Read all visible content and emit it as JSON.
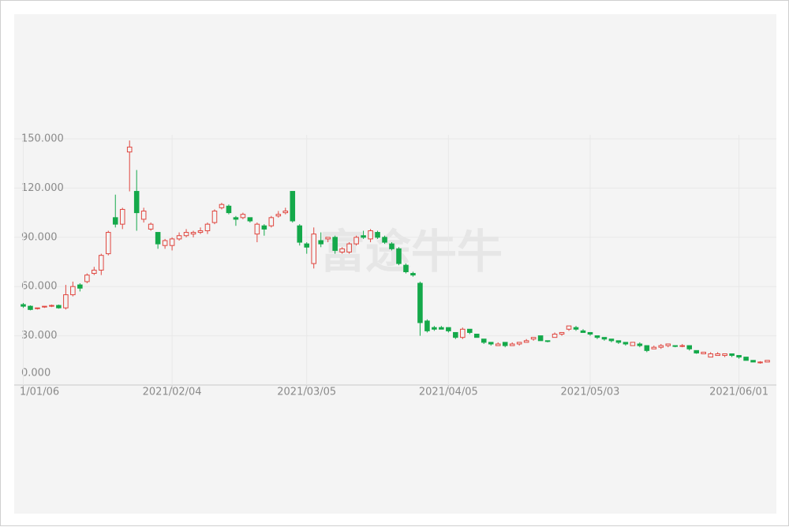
{
  "chart_data": {
    "type": "candlestick",
    "watermark": "富途牛牛",
    "up_color": "#e0463f",
    "down_color": "#14a94a",
    "grid": true,
    "ylim": [
      0,
      150
    ],
    "yticks": [
      {
        "value": 0,
        "label": "0.000"
      },
      {
        "value": 30,
        "label": "30.000"
      },
      {
        "value": 60,
        "label": "60.000"
      },
      {
        "value": 90,
        "label": "90.000"
      },
      {
        "value": 120,
        "label": "120.000"
      },
      {
        "value": 150,
        "label": "150.000"
      }
    ],
    "categories": [
      "1/01/06",
      null,
      null,
      null,
      null,
      null,
      null,
      null,
      null,
      null,
      null,
      null,
      null,
      null,
      null,
      null,
      null,
      null,
      null,
      null,
      null,
      "2021/02/04",
      null,
      null,
      null,
      null,
      null,
      null,
      null,
      null,
      null,
      null,
      null,
      null,
      null,
      null,
      null,
      null,
      null,
      null,
      "2021/03/05",
      null,
      null,
      null,
      null,
      null,
      null,
      null,
      null,
      null,
      null,
      null,
      null,
      null,
      null,
      null,
      null,
      null,
      null,
      null,
      "2021/04/05",
      null,
      null,
      null,
      null,
      null,
      null,
      null,
      null,
      null,
      null,
      null,
      null,
      null,
      null,
      null,
      null,
      null,
      null,
      null,
      "2021/05/03",
      null,
      null,
      null,
      null,
      null,
      null,
      null,
      null,
      null,
      null,
      null,
      null,
      null,
      null,
      null,
      null,
      null,
      null,
      null,
      null,
      "2021/06/01",
      null,
      null,
      null,
      null
    ],
    "open": [
      49,
      48,
      46.5,
      47.5,
      48,
      48.5,
      47,
      55,
      61,
      63,
      68,
      70,
      80,
      102,
      98,
      142,
      118,
      101,
      95,
      93,
      85,
      85,
      89,
      91,
      92,
      93,
      94,
      99,
      108,
      109,
      102,
      102,
      102,
      92,
      97,
      97,
      103,
      105,
      118,
      97,
      86,
      74,
      88,
      89,
      90,
      81,
      81,
      86,
      91,
      89,
      93,
      90,
      86,
      83,
      73,
      68,
      62,
      39,
      35,
      35,
      35,
      32,
      29,
      34,
      31,
      28,
      26,
      24,
      26,
      24,
      25,
      26,
      28,
      30,
      27,
      29,
      31,
      34,
      35,
      33,
      32,
      30,
      29,
      28,
      27,
      26,
      24,
      25,
      24,
      22,
      23,
      24,
      24,
      23.5,
      24,
      21,
      19,
      17,
      18,
      18,
      19,
      18,
      17,
      15,
      13.5,
      14
    ],
    "high": [
      50,
      48.5,
      47,
      48,
      49,
      49,
      61,
      63,
      62,
      68,
      72,
      80,
      94,
      116,
      108,
      149,
      131,
      108,
      99,
      93,
      89,
      90,
      93,
      95,
      94,
      96,
      99,
      107,
      111,
      110,
      103,
      105,
      101,
      99,
      98,
      103,
      106,
      108,
      118,
      98,
      87,
      96,
      93,
      90,
      91,
      84,
      87,
      91,
      94,
      95,
      94,
      91,
      87,
      84,
      74,
      69,
      63,
      40,
      36,
      36,
      35,
      32,
      35,
      34,
      31,
      28,
      26,
      26,
      26,
      26,
      26,
      28,
      29,
      30,
      27,
      32,
      32,
      36,
      36,
      34,
      32,
      30,
      29,
      28,
      27,
      26,
      26,
      26,
      24,
      24,
      25,
      25,
      24,
      25,
      24,
      21,
      20,
      20,
      20,
      19,
      19,
      18,
      17,
      15,
      14.5,
      15
    ],
    "low": [
      47,
      45.5,
      46,
      47,
      47.5,
      46.5,
      46,
      54,
      57,
      62,
      67,
      67,
      79,
      96,
      95,
      118,
      94,
      99,
      94,
      83,
      83,
      82,
      88,
      90,
      90,
      92,
      92,
      98,
      107,
      104,
      97,
      101,
      99,
      87,
      91,
      96,
      102,
      104,
      99,
      85,
      80,
      71,
      84,
      87,
      80,
      80,
      80,
      85,
      89,
      87,
      89,
      86,
      82,
      73,
      68,
      66,
      30,
      32,
      33,
      34,
      32,
      28,
      28,
      31,
      29,
      25,
      24,
      24,
      23,
      24,
      24,
      26,
      27,
      27,
      26,
      29,
      30,
      33,
      33,
      32,
      30,
      28,
      27,
      26,
      25,
      24,
      24,
      23,
      20,
      22,
      22,
      23,
      23,
      23,
      21,
      19,
      19,
      17,
      18,
      17,
      17,
      16,
      15,
      14,
      13,
      14
    ],
    "close": [
      48,
      46,
      47,
      48,
      48.5,
      47,
      55,
      60,
      59,
      67,
      70,
      79,
      93,
      98,
      107,
      145,
      105,
      106,
      98,
      86,
      88,
      89,
      91,
      93,
      93,
      94,
      98,
      106,
      110,
      105,
      101,
      104,
      100,
      98,
      95,
      102,
      104,
      106,
      100,
      87,
      84,
      92,
      86,
      90,
      82,
      83,
      86,
      90,
      90,
      94,
      90,
      87,
      83,
      74,
      69,
      67,
      38,
      33,
      34,
      34,
      33,
      29,
      34,
      32,
      29,
      26,
      25,
      25,
      24,
      25,
      26,
      27,
      29,
      27,
      26.5,
      31,
      32,
      36,
      34,
      32,
      31,
      29,
      28,
      27,
      26,
      25,
      26,
      24,
      21,
      23,
      24,
      25,
      23.5,
      24,
      22,
      19.5,
      20,
      19,
      19,
      19,
      18,
      17,
      15,
      14,
      14,
      15
    ]
  }
}
